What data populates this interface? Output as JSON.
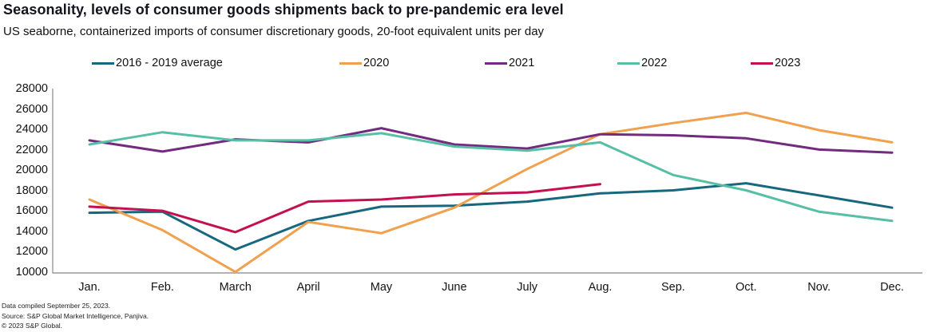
{
  "header": {
    "title": "Seasonality, levels of consumer goods shipments back to pre-pandemic era level",
    "subtitle": "US seaborne, containerized imports of consumer discretionary goods, 20-foot equivalent units per day"
  },
  "footer": {
    "line1": "Data compiled September 25, 2023.",
    "line2": "Source: S&P Global Market Intelligence, Panjiva.",
    "line3": "© 2023 S&P Global."
  },
  "chart_data": {
    "type": "line",
    "title": "Seasonality, levels of consumer goods shipments back to pre-pandemic era level",
    "subtitle": "US seaborne, containerized imports of consumer discretionary goods, 20-foot equivalent units per day",
    "categories": [
      "Jan.",
      "Feb.",
      "March",
      "April",
      "May",
      "June",
      "July",
      "Aug.",
      "Sep.",
      "Oct.",
      "Nov.",
      "Dec."
    ],
    "ylim": [
      10000,
      28000
    ],
    "ytick_step": 2000,
    "yticks": [
      10000,
      12000,
      14000,
      16000,
      18000,
      20000,
      22000,
      24000,
      26000,
      28000
    ],
    "grid": false,
    "legend_position": "top",
    "axis_color": "#999999",
    "series": [
      {
        "name": "2016 - 2019 average",
        "color": "#17687E",
        "values": [
          15900,
          16000,
          12300,
          15100,
          16500,
          16600,
          17000,
          17800,
          18100,
          18800,
          17600,
          16400
        ]
      },
      {
        "name": "2020",
        "color": "#F0A14F",
        "values": [
          17200,
          14200,
          10100,
          15000,
          13900,
          16400,
          20200,
          23600,
          24700,
          25700,
          24000,
          22800
        ]
      },
      {
        "name": "2021",
        "color": "#722B7E",
        "values": [
          23000,
          21900,
          23100,
          22800,
          24200,
          22600,
          22200,
          23600,
          23500,
          23200,
          22100,
          21800
        ]
      },
      {
        "name": "2022",
        "color": "#56BFA6",
        "values": [
          22600,
          23800,
          23000,
          23000,
          23700,
          22400,
          22000,
          22800,
          19600,
          18100,
          16000,
          15100
        ]
      },
      {
        "name": "2023",
        "color": "#C4104F",
        "values": [
          16500,
          16100,
          14000,
          17000,
          17200,
          17700,
          17900,
          18700
        ]
      }
    ]
  }
}
